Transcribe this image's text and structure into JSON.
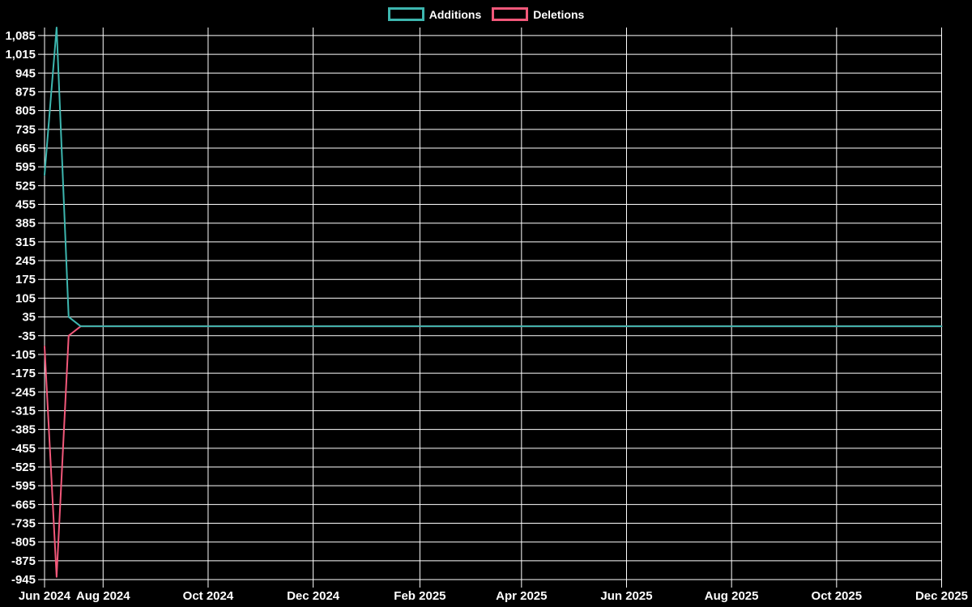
{
  "page": {
    "background_color": "#000000",
    "text_color": "#ffffff",
    "grid_color": "#ffffff"
  },
  "legend": {
    "position": "top-center",
    "items": [
      {
        "label": "Additions",
        "color": "#3db6af"
      },
      {
        "label": "Deletions",
        "color": "#f2587a"
      }
    ]
  },
  "chart_data": {
    "type": "line",
    "title": "",
    "grid": true,
    "background": "#000000",
    "legend_position": "top-center",
    "legend": [
      "Additions",
      "Deletions"
    ],
    "x_axis": {
      "type": "time",
      "min": "2024-06-28",
      "max": "2025-12-01",
      "ticks": [
        {
          "label": "Jun 2024",
          "date": "2024-06-28"
        },
        {
          "label": "Aug 2024",
          "date": "2024-08-01"
        },
        {
          "label": "Oct 2024",
          "date": "2024-10-01"
        },
        {
          "label": "Dec 2024",
          "date": "2024-12-01"
        },
        {
          "label": "Feb 2025",
          "date": "2025-02-01"
        },
        {
          "label": "Apr 2025",
          "date": "2025-04-01"
        },
        {
          "label": "Jun 2025",
          "date": "2025-06-01"
        },
        {
          "label": "Aug 2025",
          "date": "2025-08-01"
        },
        {
          "label": "Oct 2025",
          "date": "2025-10-01"
        },
        {
          "label": "Dec 2025",
          "date": "2025-12-01"
        }
      ]
    },
    "y_axis": {
      "ylim": [
        -975,
        1115
      ],
      "tick_step": 70,
      "ticks": [
        {
          "value": 1085,
          "label": "1,085"
        },
        {
          "value": 1015,
          "label": "1,015"
        },
        {
          "value": 945,
          "label": "945"
        },
        {
          "value": 875,
          "label": "875"
        },
        {
          "value": 805,
          "label": "805"
        },
        {
          "value": 735,
          "label": "735"
        },
        {
          "value": 665,
          "label": "665"
        },
        {
          "value": 595,
          "label": "595"
        },
        {
          "value": 525,
          "label": "525"
        },
        {
          "value": 455,
          "label": "455"
        },
        {
          "value": 385,
          "label": "385"
        },
        {
          "value": 315,
          "label": "315"
        },
        {
          "value": 245,
          "label": "245"
        },
        {
          "value": 175,
          "label": "175"
        },
        {
          "value": 105,
          "label": "105"
        },
        {
          "value": 35,
          "label": "35"
        },
        {
          "value": -35,
          "label": "-35"
        },
        {
          "value": -105,
          "label": "-105"
        },
        {
          "value": -175,
          "label": "-175"
        },
        {
          "value": -245,
          "label": "-245"
        },
        {
          "value": -315,
          "label": "-315"
        },
        {
          "value": -385,
          "label": "-385"
        },
        {
          "value": -455,
          "label": "-455"
        },
        {
          "value": -525,
          "label": "-525"
        },
        {
          "value": -595,
          "label": "-595"
        },
        {
          "value": -665,
          "label": "-665"
        },
        {
          "value": -735,
          "label": "-735"
        },
        {
          "value": -805,
          "label": "-805"
        },
        {
          "value": -875,
          "label": "-875"
        },
        {
          "value": -945,
          "label": "-945"
        }
      ]
    },
    "series": [
      {
        "name": "Deletions",
        "color": "#f2587a",
        "points": [
          {
            "date": "2024-06-28",
            "value": -75
          },
          {
            "date": "2024-07-05",
            "value": -935
          },
          {
            "date": "2024-07-12",
            "value": -35
          },
          {
            "date": "2024-07-19",
            "value": 0
          },
          {
            "date": "2025-12-01",
            "value": 0
          }
        ]
      },
      {
        "name": "Additions",
        "color": "#3db6af",
        "points": [
          {
            "date": "2024-06-28",
            "value": 565
          },
          {
            "date": "2024-07-05",
            "value": 1115
          },
          {
            "date": "2024-07-12",
            "value": 35
          },
          {
            "date": "2024-07-19",
            "value": 0
          },
          {
            "date": "2025-12-01",
            "value": 0
          }
        ]
      }
    ]
  }
}
